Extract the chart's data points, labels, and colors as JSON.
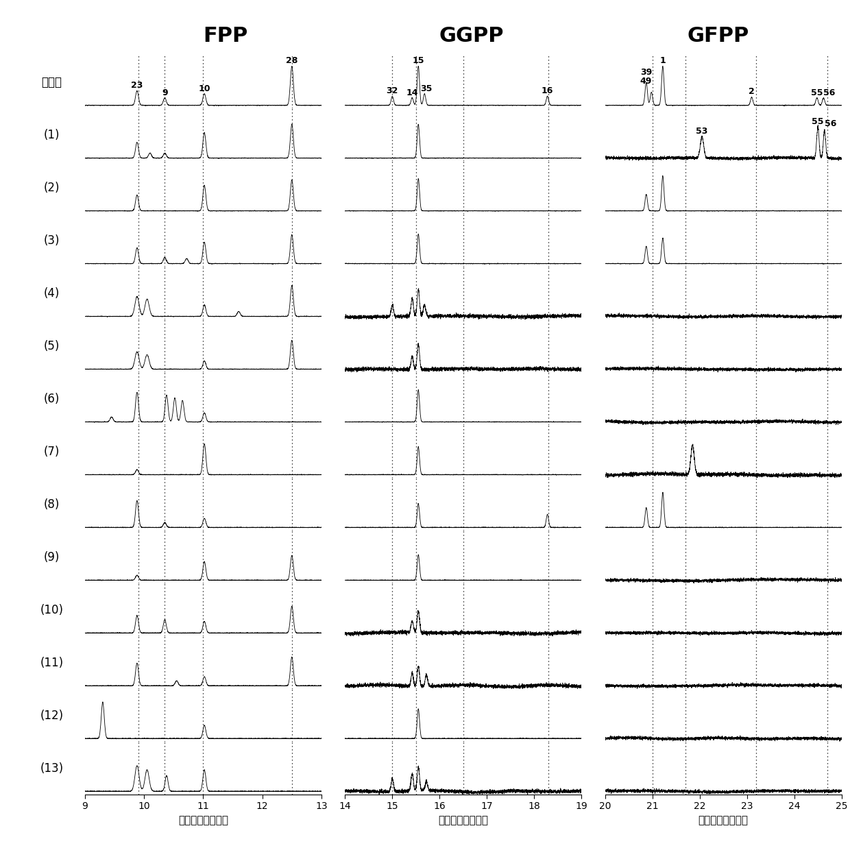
{
  "title_FPP": "FPP",
  "title_GGPP": "GGPP",
  "title_GFPP": "GFPP",
  "xlabel": "保留时间（分钟）",
  "row_labels": [
    "野生型",
    "(1)",
    "(2)",
    "(3)",
    "(4)",
    "(5)",
    "(6)",
    "(7)",
    "(8)",
    "(9)",
    "(10)",
    "(11)",
    "(12)",
    "(13)"
  ],
  "fpp_xlim": [
    9,
    13
  ],
  "ggpp_xlim": [
    14,
    19
  ],
  "gfpp_xlim": [
    20,
    25
  ],
  "fpp_xticks": [
    9,
    10,
    11,
    12,
    13
  ],
  "ggpp_xticks": [
    14,
    15,
    16,
    17,
    18,
    19
  ],
  "gfpp_xticks": [
    20,
    21,
    22,
    23,
    24,
    25
  ],
  "fpp_dashed_lines": [
    9.9,
    10.35,
    11.0,
    12.5
  ],
  "ggpp_dashed_lines": [
    15.0,
    15.5,
    16.5,
    18.3
  ],
  "gfpp_dashed_lines": [
    21.0,
    21.7,
    23.2,
    24.7
  ],
  "background_color": "#ffffff"
}
